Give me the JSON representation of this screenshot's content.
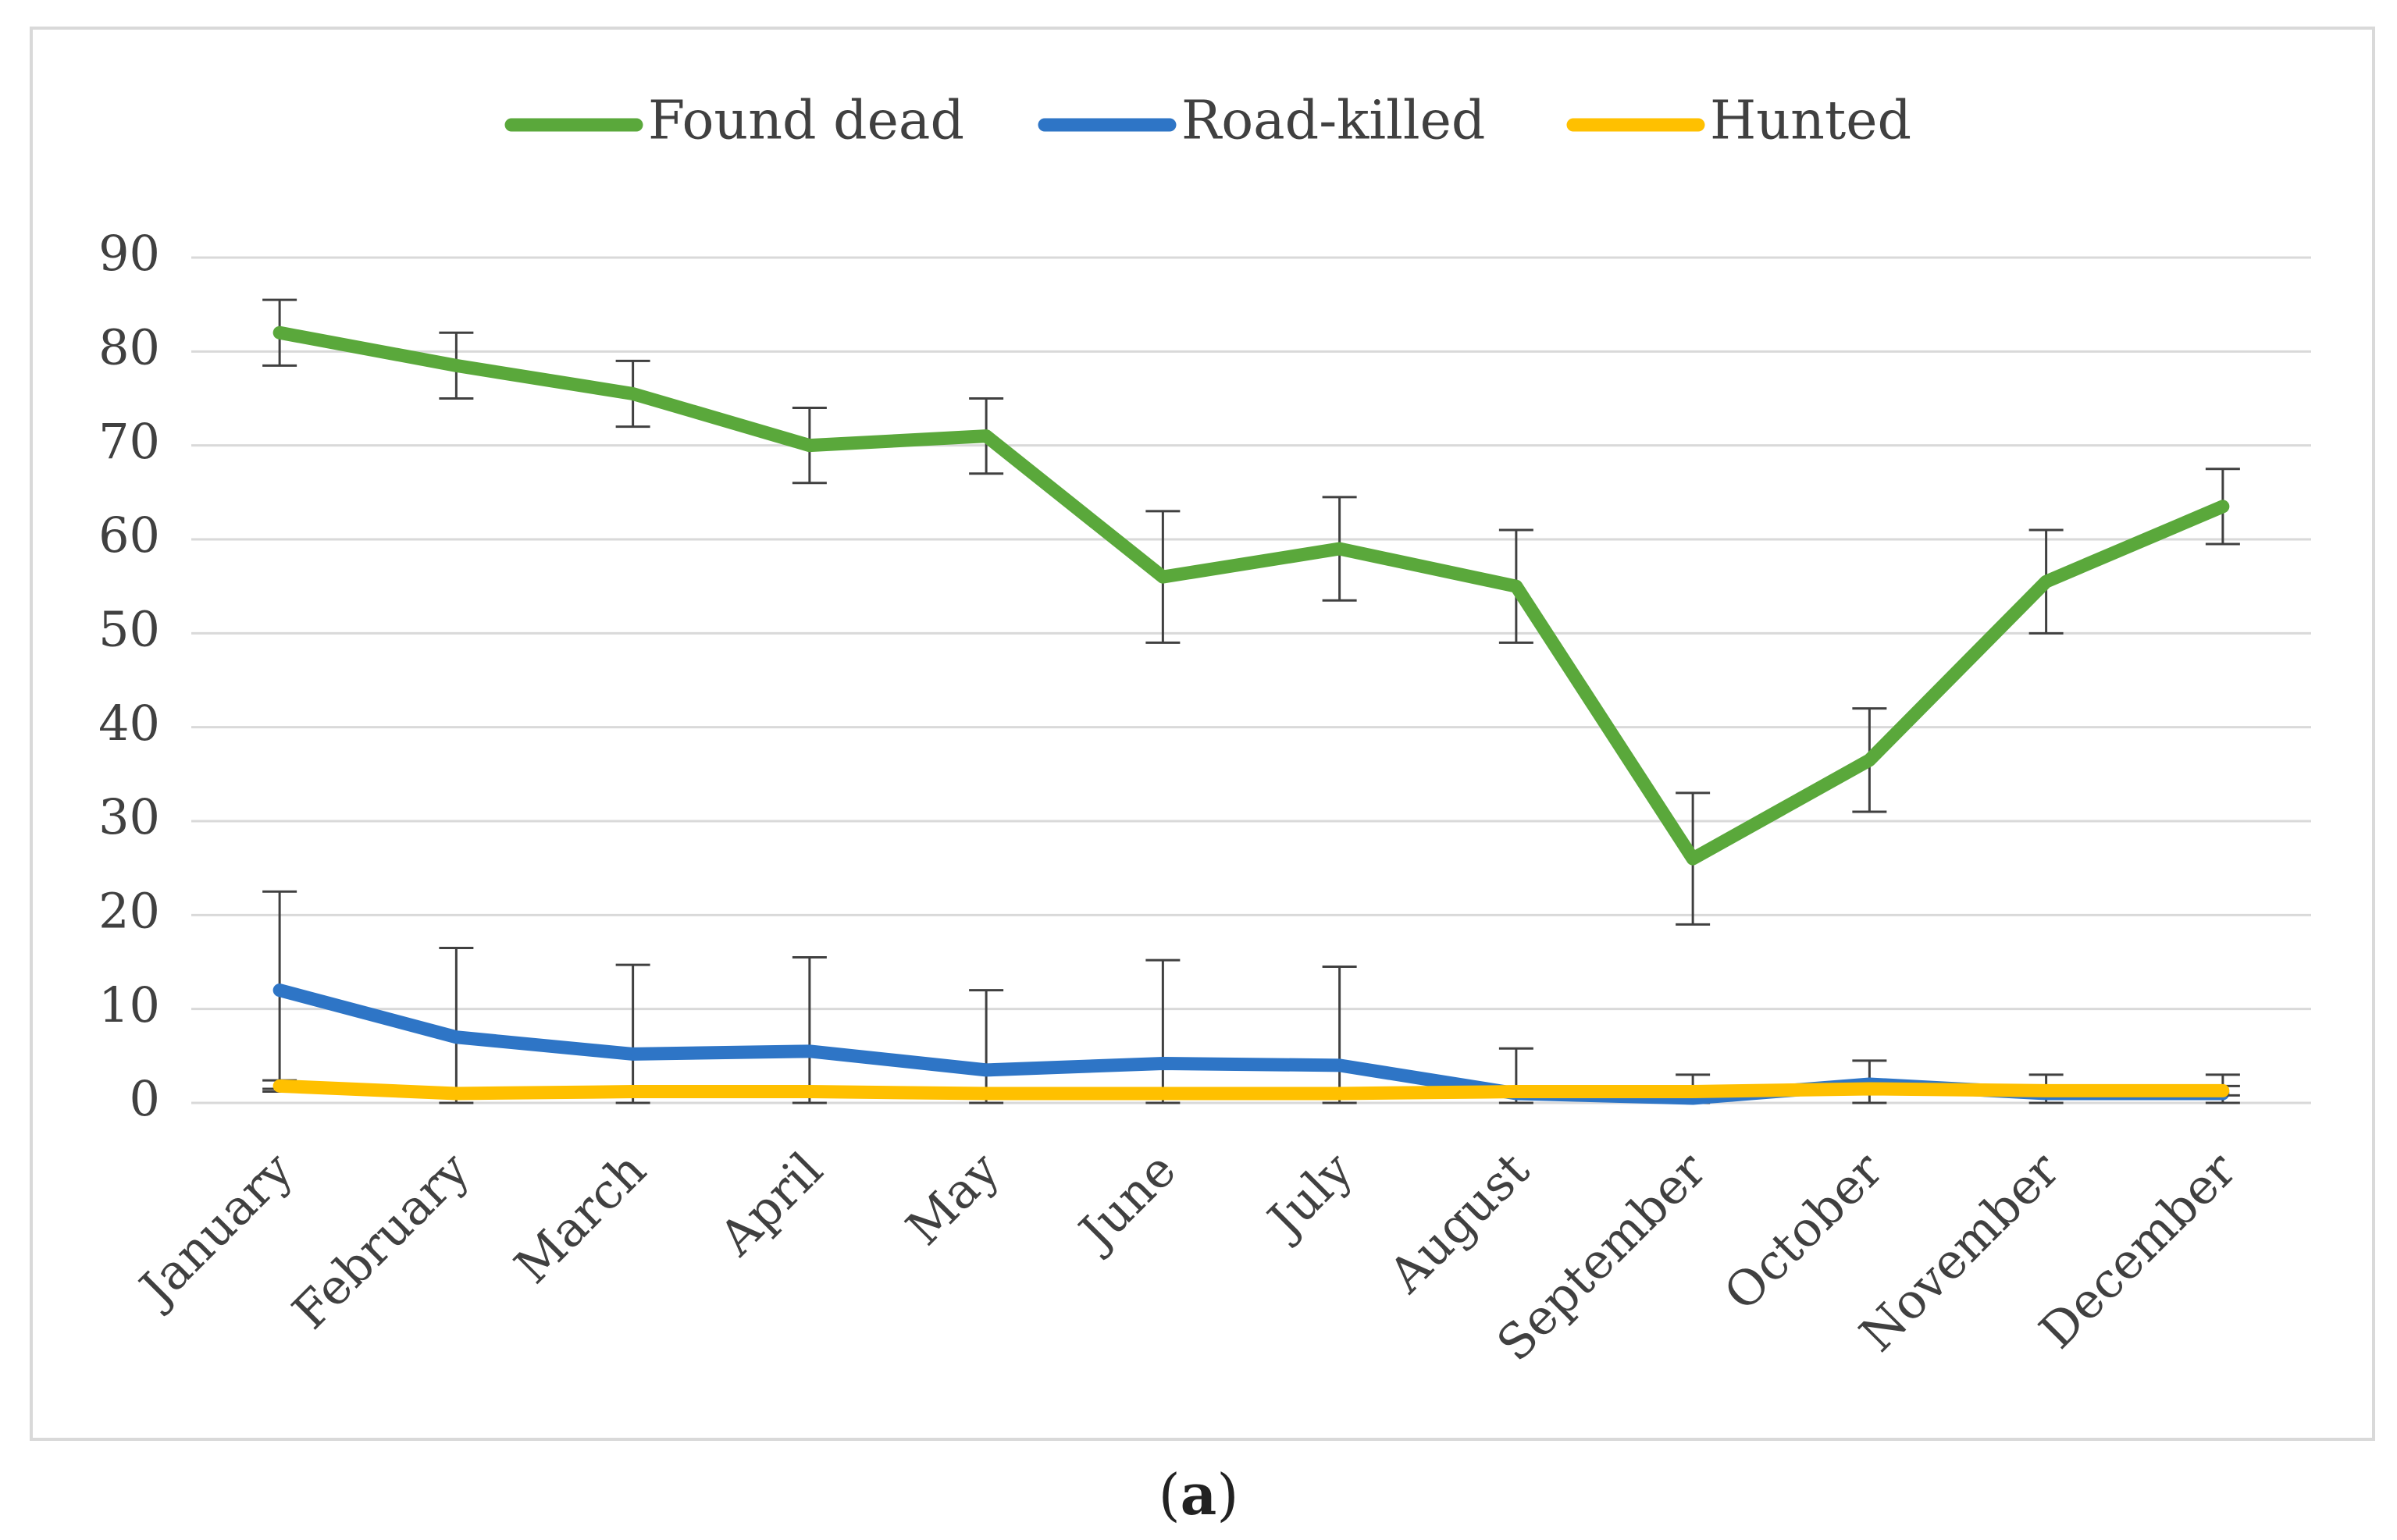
{
  "chart_data": {
    "type": "line",
    "categories": [
      "January",
      "February",
      "March",
      "April",
      "May",
      "June",
      "July",
      "August",
      "September",
      "October",
      "November",
      "December"
    ],
    "ylim": [
      0,
      90
    ],
    "yticks": [
      0,
      10,
      20,
      30,
      40,
      50,
      60,
      70,
      80,
      90
    ],
    "grid": true,
    "legend_position": "top",
    "series": [
      {
        "name": "Found dead",
        "color": "#5aa83b",
        "values": [
          82,
          78.5,
          75.5,
          70,
          71,
          56,
          59,
          55,
          26,
          36.5,
          55.5,
          63.5
        ],
        "err": [
          3.5,
          3.5,
          3.5,
          4,
          4,
          7,
          5.5,
          6,
          7,
          5.5,
          5.5,
          4
        ]
      },
      {
        "name": "Road-killed",
        "color": "#2e75c6",
        "values": [
          12,
          7,
          5.2,
          5.5,
          3.5,
          4.2,
          4,
          1,
          0.5,
          2,
          1,
          1
        ],
        "err": [
          10.5,
          9.5,
          9.5,
          10,
          8.5,
          11,
          10.5,
          4.8,
          2.5,
          2.5,
          2,
          2
        ]
      },
      {
        "name": "Hunted",
        "color": "#ffc000",
        "values": [
          1.8,
          1,
          1.2,
          1.2,
          1,
          1,
          1,
          1.2,
          1.2,
          1.5,
          1.3,
          1.3
        ],
        "err": [
          0.6,
          0.5,
          0.5,
          0.5,
          0.5,
          0.5,
          0.5,
          0.5,
          0.5,
          0.5,
          0.5,
          0.5
        ]
      }
    ]
  },
  "caption": {
    "open": "(",
    "label": "a",
    "close": ")"
  }
}
